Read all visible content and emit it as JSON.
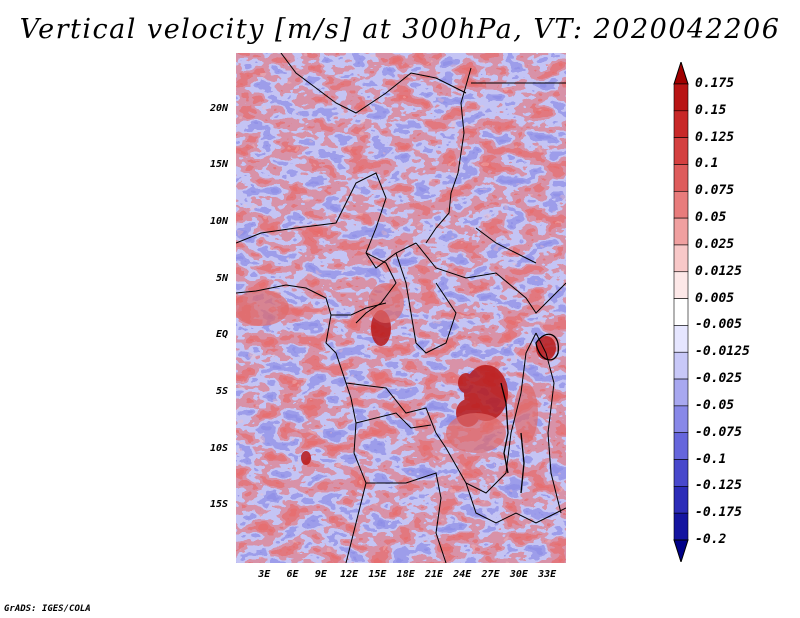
{
  "title": "Vertical velocity [m/s] at 300hPa, VT: 2020042206",
  "credit": "GrADS: IGES/COLA",
  "lat_labels": [
    "20N",
    "15N",
    "10N",
    "5N",
    "EQ",
    "5S",
    "10S",
    "15S"
  ],
  "lat_values": [
    20,
    15,
    10,
    5,
    0,
    -5,
    -10,
    -15
  ],
  "lon_labels": [
    "3E",
    "6E",
    "9E",
    "12E",
    "15E",
    "18E",
    "21E",
    "24E",
    "27E",
    "30E",
    "33E"
  ],
  "lon_values": [
    3,
    6,
    9,
    12,
    15,
    18,
    21,
    24,
    27,
    30,
    33
  ],
  "map_extent": {
    "lon_min": 0,
    "lon_max": 35,
    "lat_min": -20,
    "lat_max": 25
  },
  "colorbar": {
    "labels": [
      "0.175",
      "0.15",
      "0.125",
      "0.1",
      "0.075",
      "0.05",
      "0.025",
      "0.0125",
      "0.005",
      "-0.005",
      "-0.0125",
      "-0.025",
      "-0.05",
      "-0.075",
      "-0.1",
      "-0.125",
      "-0.175",
      "-0.2"
    ],
    "colors": [
      "#a00000",
      "#b81414",
      "#c82828",
      "#d44040",
      "#de5c5c",
      "#e87c7c",
      "#f0a0a0",
      "#f8c8c8",
      "#fde8e8",
      "#ffffff",
      "#e6e6ff",
      "#c8c8f8",
      "#a8a8f0",
      "#8888e8",
      "#6666dc",
      "#4848cc",
      "#2c2cb8",
      "#1414a0",
      "#000088"
    ]
  },
  "palette": {
    "red_dark": "#c01818",
    "red_mid": "#e06060",
    "red_light": "#f4b0b0",
    "blue_light": "#b8b8f0",
    "blue_mid": "#8080e0",
    "white": "#ffffff"
  }
}
